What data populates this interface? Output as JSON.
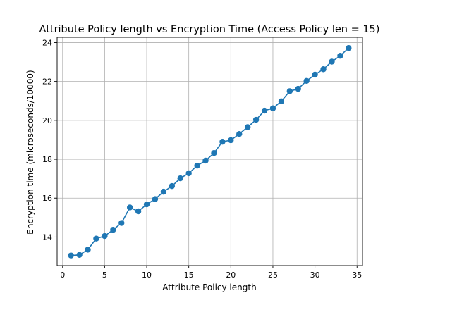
{
  "chart_data": {
    "type": "line",
    "title": "Attribute Policy length vs Encryption Time (Access Policy len = 15)",
    "xlabel": "Attribute Policy length",
    "ylabel": "Encryption time (microseconds/10000)",
    "xlim": [
      -0.65,
      35.65
    ],
    "ylim": [
      12.53,
      24.27
    ],
    "xticks": [
      0,
      5,
      10,
      15,
      20,
      25,
      30,
      35
    ],
    "yticks": [
      14,
      16,
      18,
      20,
      22,
      24
    ],
    "grid": true,
    "legend": "none",
    "series": [
      {
        "color": "#1f77b4",
        "marker": "circle",
        "x": [
          1,
          2,
          3,
          4,
          5,
          6,
          7,
          8,
          9,
          10,
          11,
          12,
          13,
          14,
          15,
          16,
          17,
          18,
          19,
          20,
          21,
          22,
          23,
          24,
          25,
          26,
          27,
          28,
          29,
          30,
          31,
          32,
          33,
          34
        ],
        "y": [
          13.05,
          13.08,
          13.35,
          13.92,
          14.05,
          14.37,
          14.72,
          15.52,
          15.32,
          15.68,
          15.95,
          16.33,
          16.62,
          17.02,
          17.28,
          17.67,
          17.93,
          18.32,
          18.9,
          18.98,
          19.3,
          19.65,
          20.03,
          20.5,
          20.62,
          20.98,
          21.5,
          21.62,
          22.03,
          22.35,
          22.63,
          23.02,
          23.32,
          23.72
        ]
      }
    ]
  }
}
